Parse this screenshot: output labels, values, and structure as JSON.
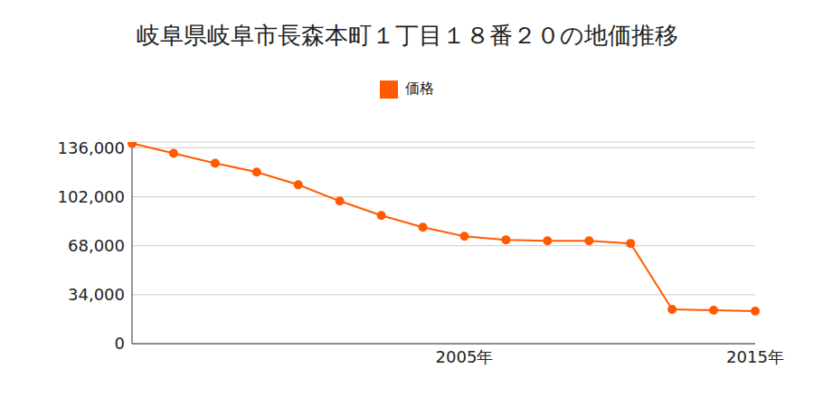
{
  "chart_data": {
    "type": "line",
    "title": "岐阜県岐阜市長森本町１丁目１８番２０の地価推移",
    "categories": [
      null,
      null,
      null,
      null,
      null,
      null,
      null,
      null,
      "2005年",
      null,
      null,
      null,
      null,
      null,
      null,
      "2015年"
    ],
    "series": [
      {
        "name": "価格",
        "color": "#ff5a00",
        "values": [
          139000,
          132200,
          125300,
          119100,
          110300,
          99000,
          89000,
          80800,
          74600,
          72100,
          71400,
          71400,
          69600,
          23800,
          23200,
          22600
        ]
      }
    ],
    "ylim": [
      0,
      140000
    ],
    "yticks": [
      0,
      {
        "value": 34000,
        "label": "34,000"
      },
      {
        "value": 68000,
        "label": "68,000"
      },
      {
        "value": 102000,
        "label": "102,000"
      },
      {
        "value": 136000,
        "label": "136,000"
      }
    ],
    "grid": true,
    "legend": "top",
    "marker": "circle"
  }
}
